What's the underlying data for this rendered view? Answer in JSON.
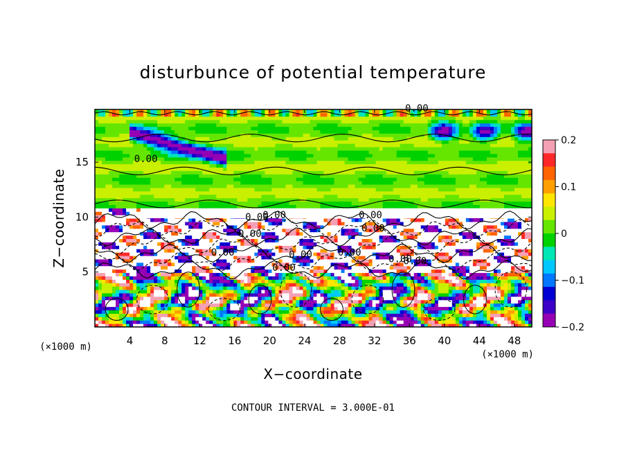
{
  "chart_data": {
    "type": "heatmap",
    "title": "disturbunce of potential temperature",
    "xlabel": "X−coordinate",
    "ylabel": "Z−coordinate",
    "x_unit": "(×1000 m)",
    "y_unit": "(×1000 m)",
    "xlim": [
      0,
      50
    ],
    "ylim": [
      0,
      19.8
    ],
    "x_ticks": [
      4,
      8,
      12,
      16,
      20,
      24,
      28,
      32,
      36,
      40,
      44,
      48
    ],
    "y_ticks": [
      5,
      10,
      15
    ],
    "colorbar": {
      "range": [
        -0.2,
        0.2
      ],
      "ticks": [
        "0.2",
        "0.1",
        "0",
        "−0.1",
        "−0.2"
      ],
      "colors": [
        "#f4a0b4",
        "#ff2828",
        "#ff6400",
        "#ffa000",
        "#ffe600",
        "#c8f000",
        "#64e600",
        "#00d200",
        "#00e6b4",
        "#00c8ff",
        "#0078ff",
        "#0000d2",
        "#3c00c8",
        "#9600b4"
      ]
    },
    "contour_interval_text": "CONTOUR INTERVAL = 3.000E-01",
    "contour_labels": [
      "0.00",
      "0.00",
      "0.00",
      "0.00",
      "0.00",
      "0.00",
      "0.00",
      "0.00",
      "0.00",
      "0.00",
      "0.00",
      "0.00",
      "0.00"
    ]
  }
}
